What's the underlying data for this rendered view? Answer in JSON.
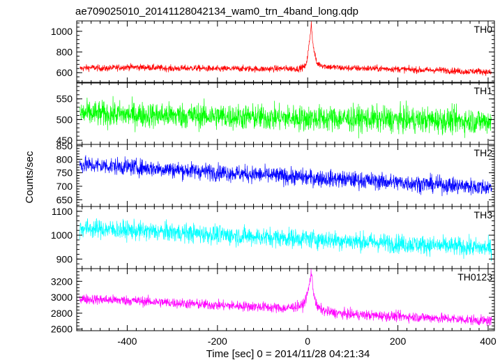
{
  "chart_data": {
    "type": "line",
    "title": "ae709025010_20141128042134_wam0_trn_4band_long.qdp",
    "xlabel": "Time [sec] 0 = 2014/11/28 04:21:34",
    "ylabel": "Counts/sec",
    "xlim": [
      -512,
      414
    ],
    "xticks": [
      -400,
      -200,
      0,
      200,
      400
    ],
    "grid": false,
    "panels": [
      {
        "name": "TH0",
        "color": "#ff0000",
        "ylim": [
          500,
          1100
        ],
        "yticks": [
          600,
          800,
          1000
        ],
        "x": [
          -505,
          -480,
          -450,
          -400,
          -350,
          -300,
          -250,
          -200,
          -150,
          -100,
          -50,
          -20,
          -5,
          0,
          5,
          8,
          12,
          20,
          40,
          80,
          150,
          200,
          250,
          300,
          350,
          380,
          408
        ],
        "y": [
          640,
          650,
          640,
          655,
          650,
          640,
          645,
          635,
          640,
          635,
          640,
          638,
          660,
          760,
          940,
          1080,
          860,
          690,
          660,
          645,
          640,
          635,
          625,
          625,
          610,
          615,
          600
        ],
        "noise": 22
      },
      {
        "name": "TH1",
        "color": "#00ff00",
        "ylim": [
          440,
          590
        ],
        "yticks": [
          450,
          500,
          550
        ],
        "x": [
          -505,
          -400,
          -300,
          -200,
          -100,
          0,
          100,
          200,
          300,
          408
        ],
        "y": [
          515,
          512,
          510,
          508,
          505,
          503,
          502,
          500,
          498,
          496
        ],
        "noise": 22
      },
      {
        "name": "TH2",
        "color": "#0000ff",
        "ylim": [
          625,
          855
        ],
        "yticks": [
          650,
          700,
          750,
          800,
          850
        ],
        "x": [
          -505,
          -400,
          -300,
          -200,
          -100,
          0,
          100,
          200,
          300,
          408
        ],
        "y": [
          780,
          772,
          762,
          752,
          742,
          732,
          724,
          714,
          705,
          695
        ],
        "noise": 22
      },
      {
        "name": "TH3",
        "color": "#00ffff",
        "ylim": [
          860,
          1120
        ],
        "yticks": [
          900,
          1000,
          1100
        ],
        "x": [
          -505,
          -400,
          -300,
          -200,
          -100,
          0,
          100,
          200,
          300,
          408
        ],
        "y": [
          1030,
          1020,
          1012,
          1002,
          992,
          985,
          975,
          965,
          955,
          945
        ],
        "noise": 28
      },
      {
        "name": "TH0123",
        "color": "#ff00ff",
        "ylim": [
          2580,
          3360
        ],
        "yticks": [
          2600,
          2800,
          3000,
          3200
        ],
        "x": [
          -505,
          -400,
          -300,
          -200,
          -100,
          -50,
          -10,
          0,
          5,
          8,
          12,
          20,
          40,
          80,
          150,
          250,
          350,
          408
        ],
        "y": [
          2980,
          2960,
          2930,
          2900,
          2880,
          2860,
          2900,
          3050,
          3200,
          3330,
          3100,
          2880,
          2820,
          2790,
          2770,
          2750,
          2720,
          2700
        ],
        "noise": 45
      }
    ]
  }
}
